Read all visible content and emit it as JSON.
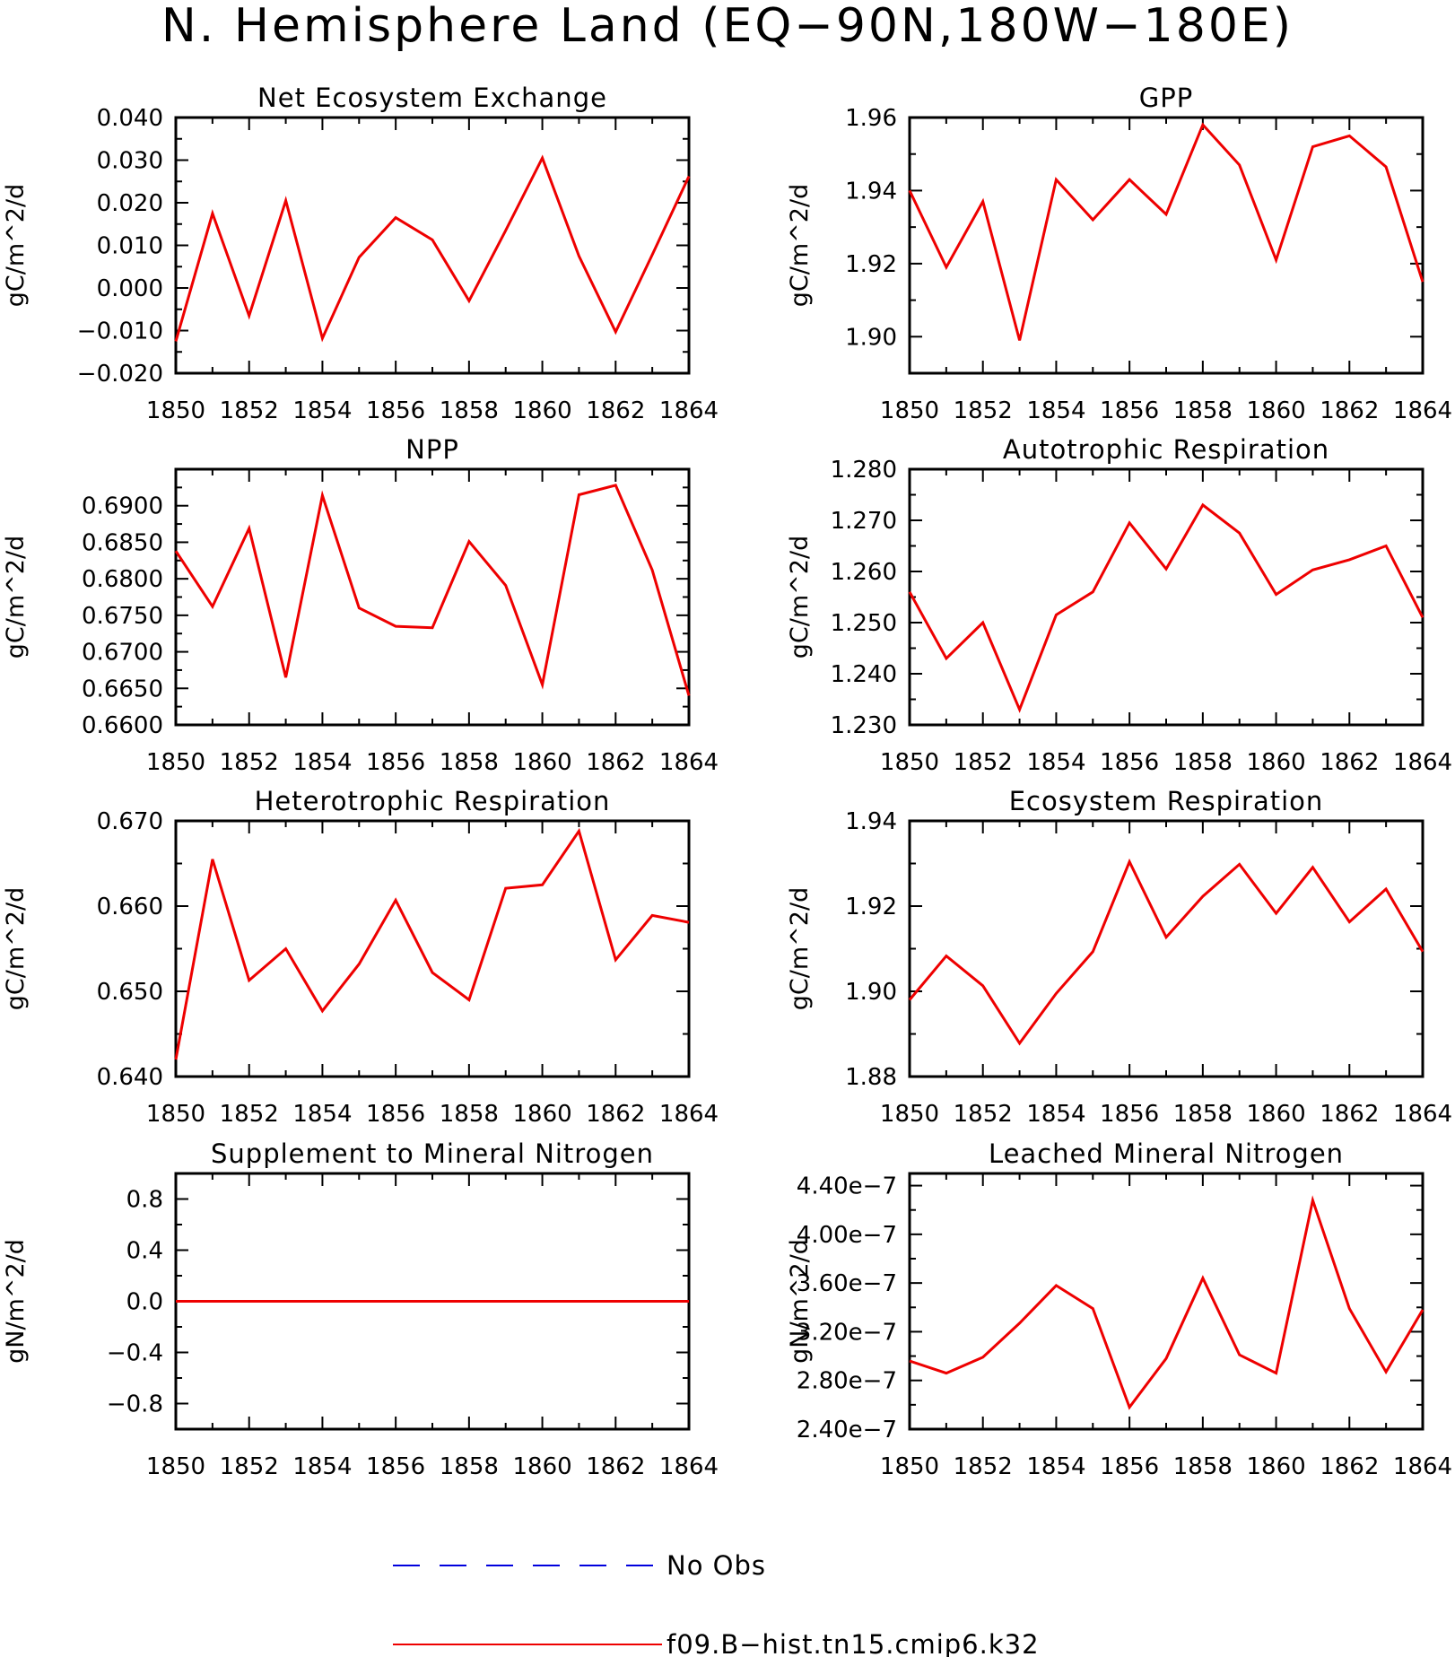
{
  "title": "N. Hemisphere Land (EQ−90N,180W−180E)",
  "colors": {
    "model": "#ee0000",
    "obs": "#0000dd",
    "frame": "#000000"
  },
  "legend": [
    {
      "label": "No Obs",
      "style": "dashed",
      "color": "#0000dd"
    },
    {
      "label": "f09.B−hist.tn15.cmip6.k32",
      "style": "solid",
      "color": "#ee0000"
    }
  ],
  "chart_data": [
    {
      "type": "line",
      "title": "Net Ecosystem Exchange",
      "ylabel": "gC/m^2/d",
      "xlabel": "",
      "x": [
        1850,
        1851,
        1852,
        1853,
        1854,
        1855,
        1856,
        1857,
        1858,
        1859,
        1860,
        1861,
        1862,
        1863,
        1864
      ],
      "xlim": [
        1850,
        1864
      ],
      "xticks": [
        "1850",
        "1852",
        "1854",
        "1856",
        "1858",
        "1860",
        "1862",
        "1864"
      ],
      "ylim": [
        -0.02,
        0.04
      ],
      "yticks": [
        -0.02,
        -0.01,
        0.0,
        0.01,
        0.02,
        0.03,
        0.04
      ],
      "ytick_labels": [
        "−0.020",
        "−0.010",
        "0.000",
        "0.010",
        "0.020",
        "0.030",
        "0.040"
      ],
      "series": [
        {
          "name": "f09.B−hist.tn15.cmip6.k32",
          "values": [
            -0.0125,
            0.0175,
            -0.0065,
            0.0205,
            -0.0118,
            0.0072,
            0.0165,
            0.0113,
            -0.003,
            0.0135,
            0.0305,
            0.0075,
            -0.0103,
            0.0078,
            0.0262
          ]
        }
      ]
    },
    {
      "type": "line",
      "title": "GPP",
      "ylabel": "gC/m^2/d",
      "xlabel": "",
      "x": [
        1850,
        1851,
        1852,
        1853,
        1854,
        1855,
        1856,
        1857,
        1858,
        1859,
        1860,
        1861,
        1862,
        1863,
        1864
      ],
      "xlim": [
        1850,
        1864
      ],
      "xticks": [
        "1850",
        "1852",
        "1854",
        "1856",
        "1858",
        "1860",
        "1862",
        "1864"
      ],
      "ylim": [
        1.89,
        1.96
      ],
      "yticks": [
        1.9,
        1.92,
        1.94,
        1.96
      ],
      "ytick_labels": [
        "1.90",
        "1.92",
        "1.94",
        "1.96"
      ],
      "series": [
        {
          "name": "f09.B−hist.tn15.cmip6.k32",
          "values": [
            1.94,
            1.919,
            1.937,
            1.899,
            1.943,
            1.932,
            1.943,
            1.9335,
            1.958,
            1.947,
            1.921,
            1.952,
            1.955,
            1.9465,
            1.915
          ]
        }
      ]
    },
    {
      "type": "line",
      "title": "NPP",
      "ylabel": "gC/m^2/d",
      "xlabel": "",
      "x": [
        1850,
        1851,
        1852,
        1853,
        1854,
        1855,
        1856,
        1857,
        1858,
        1859,
        1860,
        1861,
        1862,
        1863,
        1864
      ],
      "xlim": [
        1850,
        1864
      ],
      "xticks": [
        "1850",
        "1852",
        "1854",
        "1856",
        "1858",
        "1860",
        "1862",
        "1864"
      ],
      "ylim": [
        0.66,
        0.695
      ],
      "yticks": [
        0.66,
        0.665,
        0.67,
        0.675,
        0.68,
        0.685,
        0.69
      ],
      "ytick_labels": [
        "0.6600",
        "0.6650",
        "0.6700",
        "0.6750",
        "0.6800",
        "0.6850",
        "0.6900"
      ],
      "series": [
        {
          "name": "f09.B−hist.tn15.cmip6.k32",
          "values": [
            0.6838,
            0.6762,
            0.6869,
            0.6665,
            0.6914,
            0.676,
            0.6735,
            0.6733,
            0.6851,
            0.6791,
            0.6655,
            0.6915,
            0.6928,
            0.6812,
            0.664
          ]
        }
      ]
    },
    {
      "type": "line",
      "title": "Autotrophic Respiration",
      "ylabel": "gC/m^2/d",
      "xlabel": "",
      "x": [
        1850,
        1851,
        1852,
        1853,
        1854,
        1855,
        1856,
        1857,
        1858,
        1859,
        1860,
        1861,
        1862,
        1863,
        1864
      ],
      "xlim": [
        1850,
        1864
      ],
      "xticks": [
        "1850",
        "1852",
        "1854",
        "1856",
        "1858",
        "1860",
        "1862",
        "1864"
      ],
      "ylim": [
        1.23,
        1.28
      ],
      "yticks": [
        1.23,
        1.24,
        1.25,
        1.26,
        1.27,
        1.28
      ],
      "ytick_labels": [
        "1.230",
        "1.240",
        "1.250",
        "1.260",
        "1.270",
        "1.280"
      ],
      "series": [
        {
          "name": "f09.B−hist.tn15.cmip6.k32",
          "values": [
            1.256,
            1.243,
            1.25,
            1.233,
            1.2515,
            1.256,
            1.2695,
            1.2605,
            1.273,
            1.2675,
            1.2555,
            1.2603,
            1.2623,
            1.265,
            1.251
          ]
        }
      ]
    },
    {
      "type": "line",
      "title": "Heterotrophic Respiration",
      "ylabel": "gC/m^2/d",
      "xlabel": "",
      "x": [
        1850,
        1851,
        1852,
        1853,
        1854,
        1855,
        1856,
        1857,
        1858,
        1859,
        1860,
        1861,
        1862,
        1863,
        1864
      ],
      "xlim": [
        1850,
        1864
      ],
      "xticks": [
        "1850",
        "1852",
        "1854",
        "1856",
        "1858",
        "1860",
        "1862",
        "1864"
      ],
      "ylim": [
        0.64,
        0.67
      ],
      "yticks": [
        0.64,
        0.65,
        0.66,
        0.67
      ],
      "ytick_labels": [
        "0.640",
        "0.650",
        "0.660",
        "0.670"
      ],
      "series": [
        {
          "name": "f09.B−hist.tn15.cmip6.k32",
          "values": [
            0.642,
            0.6655,
            0.6513,
            0.655,
            0.6477,
            0.6532,
            0.6607,
            0.6522,
            0.649,
            0.6621,
            0.6625,
            0.6688,
            0.6537,
            0.6589,
            0.6581
          ]
        }
      ]
    },
    {
      "type": "line",
      "title": "Ecosystem Respiration",
      "ylabel": "gC/m^2/d",
      "xlabel": "",
      "x": [
        1850,
        1851,
        1852,
        1853,
        1854,
        1855,
        1856,
        1857,
        1858,
        1859,
        1860,
        1861,
        1862,
        1863,
        1864
      ],
      "xlim": [
        1850,
        1864
      ],
      "xticks": [
        "1850",
        "1852",
        "1854",
        "1856",
        "1858",
        "1860",
        "1862",
        "1864"
      ],
      "ylim": [
        1.88,
        1.94
      ],
      "yticks": [
        1.88,
        1.9,
        1.92,
        1.94
      ],
      "ytick_labels": [
        "1.88",
        "1.90",
        "1.92",
        "1.94"
      ],
      "series": [
        {
          "name": "f09.B−hist.tn15.cmip6.k32",
          "values": [
            1.898,
            1.9083,
            1.9013,
            1.8878,
            1.8995,
            1.9093,
            1.9304,
            1.9127,
            1.9223,
            1.9298,
            1.9183,
            1.9291,
            1.9163,
            1.924,
            1.9093
          ]
        }
      ]
    },
    {
      "type": "line",
      "title": "Supplement to Mineral Nitrogen",
      "ylabel": "gN/m^2/d",
      "xlabel": "",
      "x": [
        1850,
        1851,
        1852,
        1853,
        1854,
        1855,
        1856,
        1857,
        1858,
        1859,
        1860,
        1861,
        1862,
        1863,
        1864
      ],
      "xlim": [
        1850,
        1864
      ],
      "xticks": [
        "1850",
        "1852",
        "1854",
        "1856",
        "1858",
        "1860",
        "1862",
        "1864"
      ],
      "ylim": [
        -1.0,
        1.0
      ],
      "yticks": [
        -0.8,
        -0.4,
        0.0,
        0.4,
        0.8
      ],
      "ytick_labels": [
        "−0.8",
        "−0.4",
        "0.0",
        "0.4",
        "0.8"
      ],
      "series": [
        {
          "name": "f09.B−hist.tn15.cmip6.k32",
          "values": [
            0,
            0,
            0,
            0,
            0,
            0,
            0,
            0,
            0,
            0,
            0,
            0,
            0,
            0,
            0
          ]
        }
      ]
    },
    {
      "type": "line",
      "title": "Leached Mineral Nitrogen",
      "ylabel": "gN/m^2/d",
      "xlabel": "",
      "x": [
        1850,
        1851,
        1852,
        1853,
        1854,
        1855,
        1856,
        1857,
        1858,
        1859,
        1860,
        1861,
        1862,
        1863,
        1864
      ],
      "xlim": [
        1850,
        1864
      ],
      "xticks": [
        "1850",
        "1852",
        "1854",
        "1856",
        "1858",
        "1860",
        "1862",
        "1864"
      ],
      "ylim": [
        2.4e-07,
        4.5e-07
      ],
      "yticks": [
        2.4e-07,
        2.8e-07,
        3.2e-07,
        3.6e-07,
        4e-07,
        4.4e-07
      ],
      "ytick_labels": [
        "2.40e−7",
        "2.80e−7",
        "3.20e−7",
        "3.60e−7",
        "4.00e−7",
        "4.40e−7"
      ],
      "series": [
        {
          "name": "f09.B−hist.tn15.cmip6.k32",
          "values": [
            2.96e-07,
            2.86e-07,
            2.99e-07,
            3.27e-07,
            3.58e-07,
            3.39e-07,
            2.58e-07,
            2.98e-07,
            3.64e-07,
            3.01e-07,
            2.86e-07,
            4.28e-07,
            3.39e-07,
            2.87e-07,
            3.38e-07
          ]
        }
      ]
    }
  ]
}
